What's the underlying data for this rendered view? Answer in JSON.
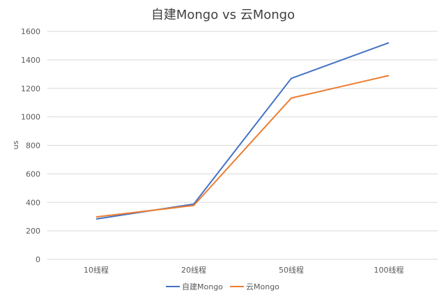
{
  "chart_data": {
    "type": "line",
    "title": "自建Mongo vs 云Mongo",
    "xlabel": "",
    "ylabel": "us",
    "categories": [
      "10线程",
      "20线程",
      "50线程",
      "100线程"
    ],
    "ylim": [
      0,
      1600
    ],
    "yticks": [
      0,
      200,
      400,
      600,
      800,
      1000,
      1200,
      1400,
      1600
    ],
    "grid": true,
    "legend": "bottom",
    "series": [
      {
        "name": "自建Mongo",
        "color": "#4472c4",
        "values": [
          283,
          388,
          1270,
          1520
        ]
      },
      {
        "name": "云Mongo",
        "color": "#ed7d31",
        "values": [
          298,
          378,
          1132,
          1290
        ]
      }
    ]
  }
}
